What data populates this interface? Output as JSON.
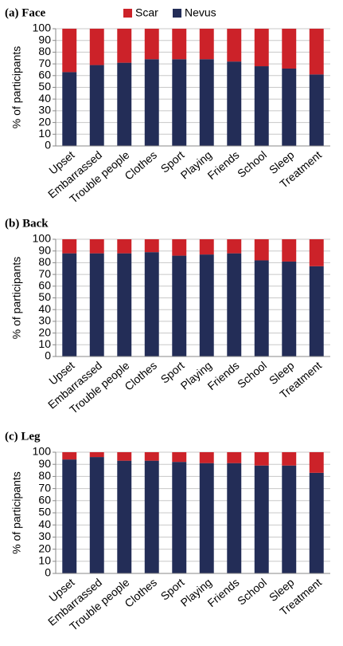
{
  "chart_data": [
    {
      "type": "bar",
      "stacked": true,
      "title": "(a)  Face",
      "y_label": "% of participants",
      "categories": [
        "Upset",
        "Embarrassed",
        "Trouble people",
        "Clothes",
        "Sport",
        "Playing",
        "Friends",
        "School",
        "Sleep",
        "Treatment"
      ],
      "series": [
        {
          "name": "Scar",
          "color": "#cc2229",
          "values": [
            37,
            31,
            29,
            26,
            26,
            26,
            28,
            32,
            34,
            39
          ]
        },
        {
          "name": "Nevus",
          "color": "#232d57",
          "values": [
            63,
            69,
            71,
            74,
            74,
            74,
            72,
            68,
            66,
            61
          ]
        }
      ],
      "ylim": [
        0,
        100
      ],
      "yticks": [
        0,
        10,
        20,
        30,
        40,
        50,
        60,
        70,
        80,
        90,
        100
      ],
      "grid": true
    },
    {
      "type": "bar",
      "stacked": true,
      "title": "(b)  Back",
      "y_label": "% of participants",
      "categories": [
        "Upset",
        "Embarrassed",
        "Trouble people",
        "Clothes",
        "Sport",
        "Playing",
        "Friends",
        "School",
        "Sleep",
        "Treatment"
      ],
      "series": [
        {
          "name": "Scar",
          "color": "#cc2229",
          "values": [
            12,
            12,
            12,
            11,
            14,
            13,
            12,
            18,
            19,
            23
          ]
        },
        {
          "name": "Nevus",
          "color": "#232d57",
          "values": [
            88,
            88,
            88,
            89,
            86,
            87,
            88,
            82,
            81,
            77
          ]
        }
      ],
      "ylim": [
        0,
        100
      ],
      "yticks": [
        0,
        10,
        20,
        30,
        40,
        50,
        60,
        70,
        80,
        90,
        100
      ],
      "grid": true
    },
    {
      "type": "bar",
      "stacked": true,
      "title": "(c)  Leg",
      "y_label": "% of participants",
      "categories": [
        "Upset",
        "Embarrassed",
        "Trouble people",
        "Clothes",
        "Sport",
        "Playing",
        "Friends",
        "School",
        "Sleep",
        "Treatment"
      ],
      "series": [
        {
          "name": "Scar",
          "color": "#cc2229",
          "values": [
            6,
            4,
            7,
            7,
            8,
            9,
            9,
            11,
            11,
            17
          ]
        },
        {
          "name": "Nevus",
          "color": "#232d57",
          "values": [
            94,
            96,
            93,
            93,
            92,
            91,
            91,
            89,
            89,
            83
          ]
        }
      ],
      "ylim": [
        0,
        100
      ],
      "yticks": [
        0,
        10,
        20,
        30,
        40,
        50,
        60,
        70,
        80,
        90,
        100
      ],
      "grid": true
    }
  ]
}
